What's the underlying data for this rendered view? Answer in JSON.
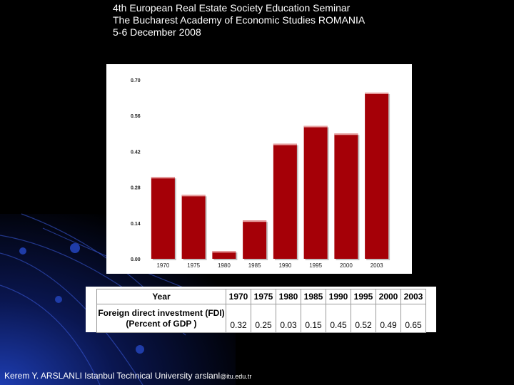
{
  "header": {
    "line1": "4th European Real Estate Society Education Seminar",
    "line2": "The Bucharest Academy of Economic Studies ROMANIA",
    "line3": "5-6 December 2008"
  },
  "chart_data": {
    "type": "bar",
    "categories": [
      "1970",
      "1975",
      "1980",
      "1985",
      "1990",
      "1995",
      "2000",
      "2003"
    ],
    "values": [
      0.32,
      0.25,
      0.03,
      0.15,
      0.45,
      0.52,
      0.49,
      0.65
    ],
    "yticks": [
      "0.00",
      "0.14",
      "0.28",
      "0.42",
      "0.56",
      "0.70"
    ],
    "ylim": [
      0,
      0.7
    ],
    "bar_color": "#a50007",
    "grid": false,
    "title": "",
    "xlabel": "",
    "ylabel": ""
  },
  "table": {
    "header_label": "Year",
    "row_label_1": "Foreign direct investment (FDI)",
    "row_label_2": "(Percent of GDP )",
    "years": [
      "1970",
      "1975",
      "1980",
      "1985",
      "1990",
      "1995",
      "2000",
      "2003"
    ],
    "values": [
      "0.32",
      "0.25",
      "0.03",
      "0.15",
      "0.45",
      "0.52",
      "0.49",
      "0.65"
    ]
  },
  "footer": {
    "text": "Kerem Y. ARSLANLI Istanbul Technical University arslanl",
    "email_suffix": "@itu.edu.tr"
  }
}
